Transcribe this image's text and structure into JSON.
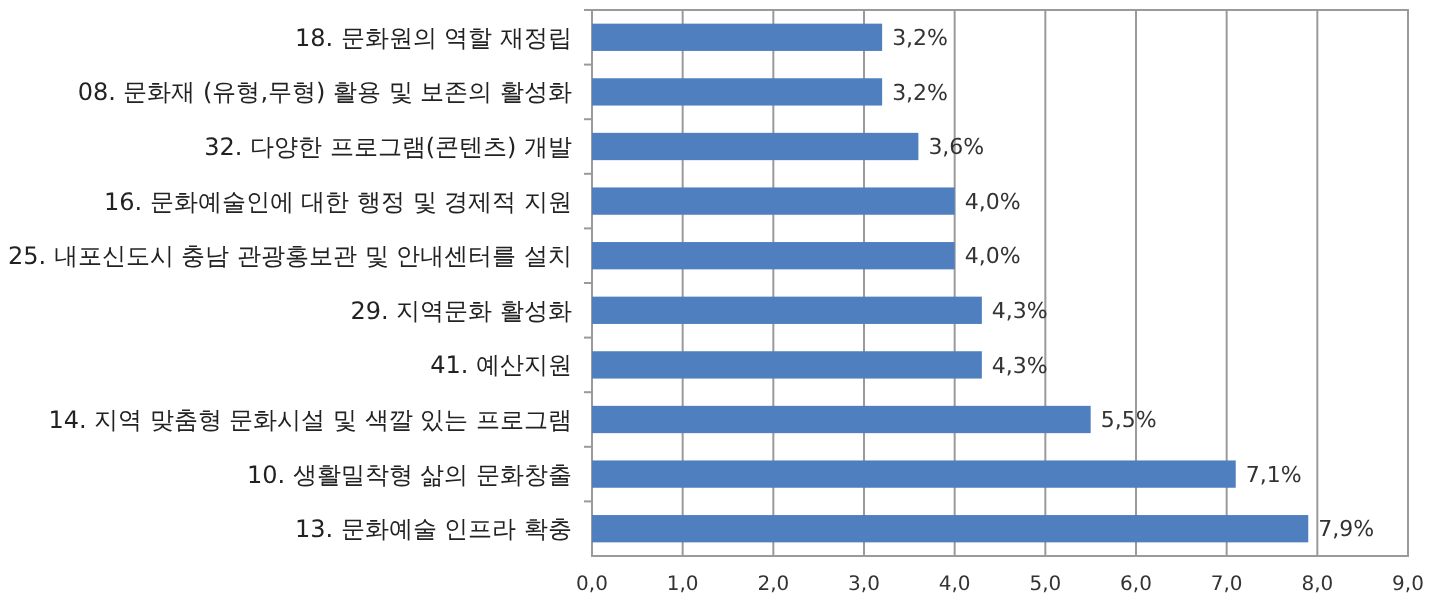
{
  "chart_data": {
    "type": "bar",
    "orientation": "horizontal",
    "categories": [
      "18. 문화원의 역할 재정립",
      "08. 문화재 (유형,무형) 활용 및 보존의 활성화",
      "32. 다양한 프로그램(콘텐츠) 개발",
      "16. 문화예술인에 대한 행정 및 경제적 지원",
      "25. 내포신도시 충남 관광홍보관 및 안내센터를 설치",
      "29. 지역문화 활성화",
      "41. 예산지원",
      "14. 지역 맞춤형 문화시설 및 색깔 있는 프로그램",
      "10. 생활밀착형 삶의 문화창출",
      "13. 문화예술 인프라 확충"
    ],
    "values": [
      3.2,
      3.2,
      3.6,
      4.0,
      4.0,
      4.3,
      4.3,
      5.5,
      7.1,
      7.9
    ],
    "value_labels": [
      "3,2%",
      "3,2%",
      "3,6%",
      "4,0%",
      "4,0%",
      "4,3%",
      "4,3%",
      "5,5%",
      "7,1%",
      "7,9%"
    ],
    "color": "#4f7fbf",
    "xlim": [
      0,
      9
    ],
    "xticks": [
      {
        "value": 0,
        "label": "0,0"
      },
      {
        "value": 1,
        "label": "1,0"
      },
      {
        "value": 2,
        "label": "2,0"
      },
      {
        "value": 3,
        "label": "3,0"
      },
      {
        "value": 4,
        "label": "4,0"
      },
      {
        "value": 5,
        "label": "5,0"
      },
      {
        "value": 6,
        "label": "6,0"
      },
      {
        "value": 7,
        "label": "7,0"
      },
      {
        "value": 8,
        "label": "8,0"
      },
      {
        "value": 9,
        "label": "9,0"
      }
    ],
    "grid": "x"
  }
}
